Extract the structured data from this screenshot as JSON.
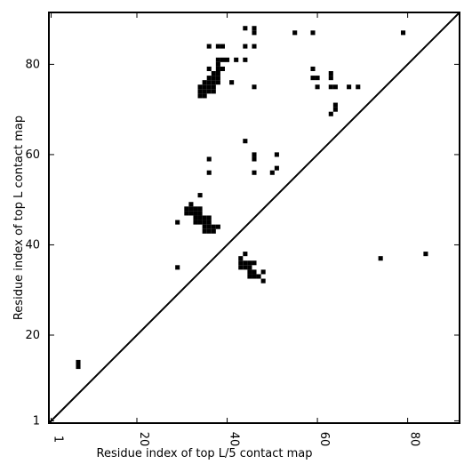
{
  "chart_data": {
    "type": "heatmap",
    "xlabel": "Residue index of top L/5 contact map",
    "ylabel": "Residue index of top L contact map",
    "xlim": [
      0.5,
      91.5
    ],
    "ylim": [
      0.5,
      91.5
    ],
    "x_ticks": [
      1,
      20,
      40,
      60,
      80
    ],
    "y_ticks": [
      1,
      20,
      40,
      60,
      80
    ],
    "grid": false,
    "colors": {
      "contact": "#000000",
      "background": "#ffffff"
    },
    "diagonal_line": true,
    "upper_triangle_points": [
      [
        44,
        88
      ],
      [
        46,
        88
      ],
      [
        46,
        87
      ],
      [
        55,
        87
      ],
      [
        59,
        87
      ],
      [
        79,
        87
      ],
      [
        36,
        84
      ],
      [
        38,
        84
      ],
      [
        39,
        84
      ],
      [
        44,
        84
      ],
      [
        46,
        84
      ],
      [
        38,
        81
      ],
      [
        39,
        81
      ],
      [
        40,
        81
      ],
      [
        42,
        81
      ],
      [
        44,
        81
      ],
      [
        38,
        80
      ],
      [
        38,
        79
      ],
      [
        39,
        79
      ],
      [
        36,
        79
      ],
      [
        59,
        79
      ],
      [
        37,
        78
      ],
      [
        38,
        78
      ],
      [
        63,
        78
      ],
      [
        36,
        77
      ],
      [
        37,
        77
      ],
      [
        38,
        77
      ],
      [
        59,
        77
      ],
      [
        60,
        77
      ],
      [
        63,
        77
      ],
      [
        35,
        76
      ],
      [
        36,
        76
      ],
      [
        37,
        76
      ],
      [
        38,
        76
      ],
      [
        41,
        76
      ],
      [
        34,
        75
      ],
      [
        35,
        75
      ],
      [
        36,
        75
      ],
      [
        37,
        75
      ],
      [
        46,
        75
      ],
      [
        60,
        75
      ],
      [
        63,
        75
      ],
      [
        64,
        75
      ],
      [
        67,
        75
      ],
      [
        69,
        75
      ],
      [
        34,
        74
      ],
      [
        35,
        74
      ],
      [
        36,
        74
      ],
      [
        37,
        74
      ],
      [
        34,
        73
      ],
      [
        35,
        73
      ],
      [
        64,
        71
      ],
      [
        64,
        70
      ],
      [
        63,
        69
      ],
      [
        44,
        63
      ],
      [
        51,
        60
      ],
      [
        46,
        60
      ],
      [
        46,
        59
      ],
      [
        36,
        59
      ],
      [
        51,
        57
      ],
      [
        50,
        56
      ],
      [
        46,
        56
      ],
      [
        36,
        56
      ]
    ],
    "lower_triangle_points": [
      [
        7,
        14
      ],
      [
        7,
        13
      ],
      [
        34,
        51
      ],
      [
        32,
        49
      ],
      [
        31,
        48
      ],
      [
        32,
        48
      ],
      [
        33,
        48
      ],
      [
        34,
        48
      ],
      [
        31,
        47
      ],
      [
        32,
        47
      ],
      [
        33,
        47
      ],
      [
        34,
        47
      ],
      [
        33,
        46
      ],
      [
        34,
        46
      ],
      [
        35,
        46
      ],
      [
        36,
        46
      ],
      [
        29,
        45
      ],
      [
        33,
        45
      ],
      [
        34,
        45
      ],
      [
        35,
        45
      ],
      [
        36,
        45
      ],
      [
        35,
        44
      ],
      [
        36,
        44
      ],
      [
        37,
        44
      ],
      [
        38,
        44
      ],
      [
        35,
        43
      ],
      [
        36,
        43
      ],
      [
        37,
        43
      ],
      [
        44,
        38
      ],
      [
        74,
        37
      ],
      [
        43,
        37
      ],
      [
        84,
        38
      ],
      [
        43,
        36
      ],
      [
        44,
        36
      ],
      [
        45,
        36
      ],
      [
        46,
        36
      ],
      [
        43,
        35
      ],
      [
        44,
        35
      ],
      [
        45,
        35
      ],
      [
        29,
        35
      ],
      [
        45,
        34
      ],
      [
        46,
        34
      ],
      [
        48,
        34
      ],
      [
        45,
        33
      ],
      [
        46,
        33
      ],
      [
        47,
        33
      ],
      [
        48,
        32
      ]
    ]
  }
}
